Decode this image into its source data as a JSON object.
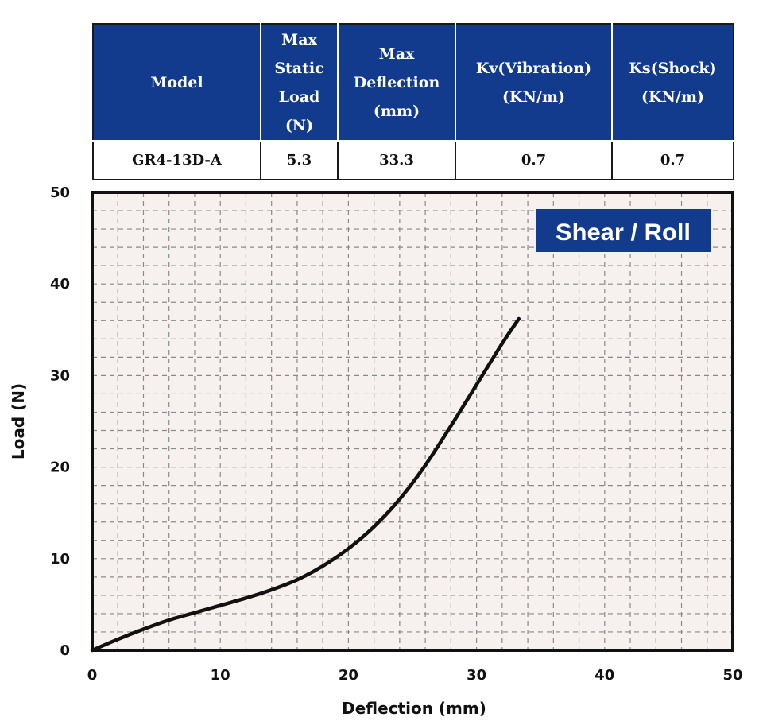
{
  "spec_table": {
    "headers": [
      "Model",
      "Max\nStatic\nLoad\n(N)",
      "Max\nDeflection\n(mm)",
      "Kv(Vibration)\n(KN/m)",
      "Ks(Shock)\n(KN/m)"
    ],
    "row": [
      "GR4-13D-A",
      "5.3",
      "33.3",
      "0.7",
      "0.7"
    ]
  },
  "colors": {
    "header_bg": "#123b8e",
    "plot_bg": "#f6f0ee",
    "grid": "#8a8a8a",
    "curve": "#111111"
  },
  "chart_data": {
    "type": "line",
    "badge": "Shear / Roll",
    "xlabel": "Deflection (mm)",
    "ylabel": "Load (N)",
    "xlim": [
      0,
      50
    ],
    "ylim": [
      0,
      50
    ],
    "xticks": [
      0,
      10,
      20,
      30,
      40,
      50
    ],
    "yticks": [
      0,
      10,
      20,
      30,
      40,
      50
    ],
    "grid": true,
    "series": [
      {
        "x": [
          0,
          2,
          4,
          6,
          8,
          10,
          12,
          14,
          16,
          18,
          20,
          22,
          24,
          26,
          28,
          30,
          32,
          33.3
        ],
        "y": [
          0,
          1.2,
          2.3,
          3.3,
          4.1,
          4.9,
          5.7,
          6.6,
          7.7,
          9.2,
          11.1,
          13.5,
          16.5,
          20.2,
          24.5,
          29.0,
          33.5,
          36.2
        ]
      }
    ]
  }
}
